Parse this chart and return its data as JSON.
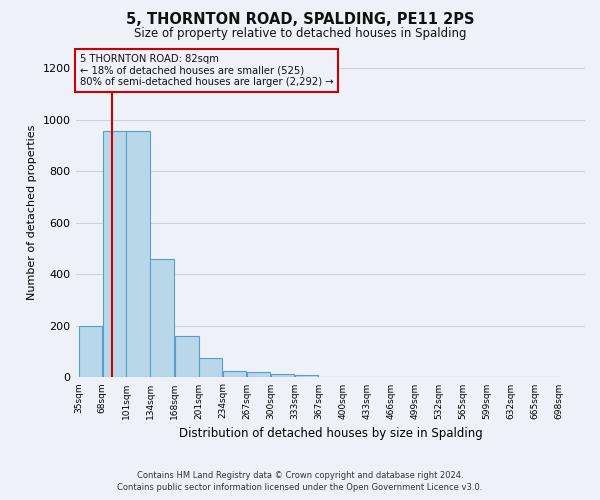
{
  "title": "5, THORNTON ROAD, SPALDING, PE11 2PS",
  "subtitle": "Size of property relative to detached houses in Spalding",
  "xlabel": "Distribution of detached houses by size in Spalding",
  "ylabel": "Number of detached properties",
  "footer_line1": "Contains HM Land Registry data © Crown copyright and database right 2024.",
  "footer_line2": "Contains public sector information licensed under the Open Government Licence v3.0.",
  "bar_color": "#b8d8ea",
  "bar_edge_color": "#5a9dc8",
  "grid_color": "#c8d4e0",
  "background_color": "#eef2f8",
  "annotation_line1": "5 THORNTON ROAD: 82sqm",
  "annotation_line2": "← 18% of detached houses are smaller (525)",
  "annotation_line3": "80% of semi-detached houses are larger (2,292) →",
  "annotation_box_color": "#cc0000",
  "property_line_x": 82,
  "property_line_color": "#cc0000",
  "bins": [
    35,
    68,
    101,
    134,
    168,
    201,
    234,
    267,
    300,
    333,
    367,
    400,
    433,
    466,
    499,
    532,
    565,
    599,
    632,
    665,
    698
  ],
  "bar_heights": [
    200,
    955,
    955,
    460,
    160,
    75,
    25,
    20,
    15,
    10,
    0,
    0,
    0,
    0,
    0,
    0,
    0,
    0,
    0,
    0
  ],
  "ylim": [
    0,
    1280
  ],
  "yticks": [
    0,
    200,
    400,
    600,
    800,
    1000,
    1200
  ],
  "figsize": [
    6.0,
    5.0
  ],
  "dpi": 100
}
